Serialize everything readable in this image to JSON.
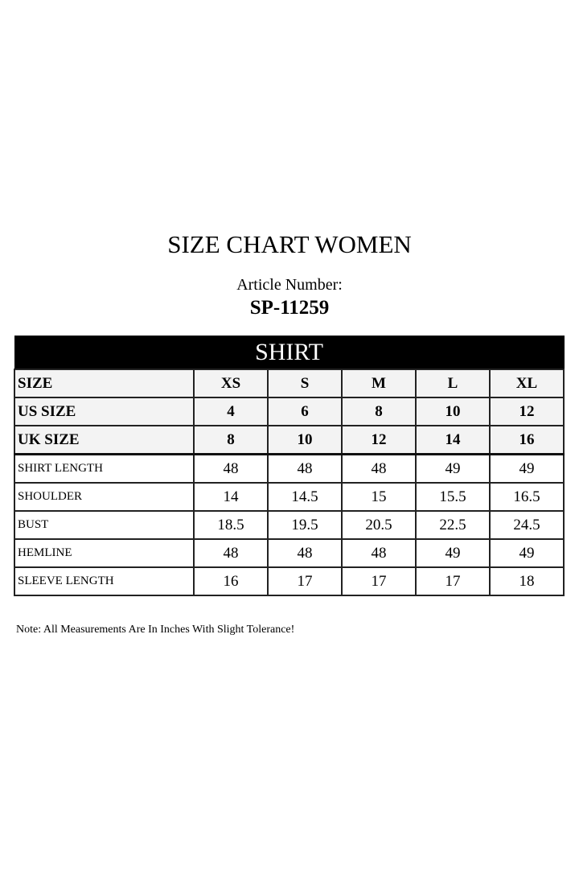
{
  "title": "SIZE CHART WOMEN",
  "article_label": "Article Number:",
  "article_number": "SP-11259",
  "table": {
    "section": "SHIRT",
    "header_rows": [
      {
        "label": "SIZE",
        "values": [
          "XS",
          "S",
          "M",
          "L",
          "XL"
        ]
      },
      {
        "label": "US SIZE",
        "values": [
          "4",
          "6",
          "8",
          "10",
          "12"
        ]
      },
      {
        "label": "UK SIZE",
        "values": [
          "8",
          "10",
          "12",
          "14",
          "16"
        ]
      }
    ],
    "rows": [
      {
        "label": "SHIRT LENGTH",
        "values": [
          "48",
          "48",
          "48",
          "49",
          "49"
        ]
      },
      {
        "label": "SHOULDER",
        "values": [
          "14",
          "14.5",
          "15",
          "15.5",
          "16.5"
        ]
      },
      {
        "label": "BUST",
        "values": [
          "18.5",
          "19.5",
          "20.5",
          "22.5",
          "24.5"
        ]
      },
      {
        "label": "HEMLINE",
        "values": [
          "48",
          "48",
          "48",
          "49",
          "49"
        ]
      },
      {
        "label": "SLEEVE LENGTH",
        "values": [
          "16",
          "17",
          "17",
          "17",
          "18"
        ]
      }
    ]
  },
  "note": "Note: All Measurements Are In Inches With Slight Tolerance!"
}
